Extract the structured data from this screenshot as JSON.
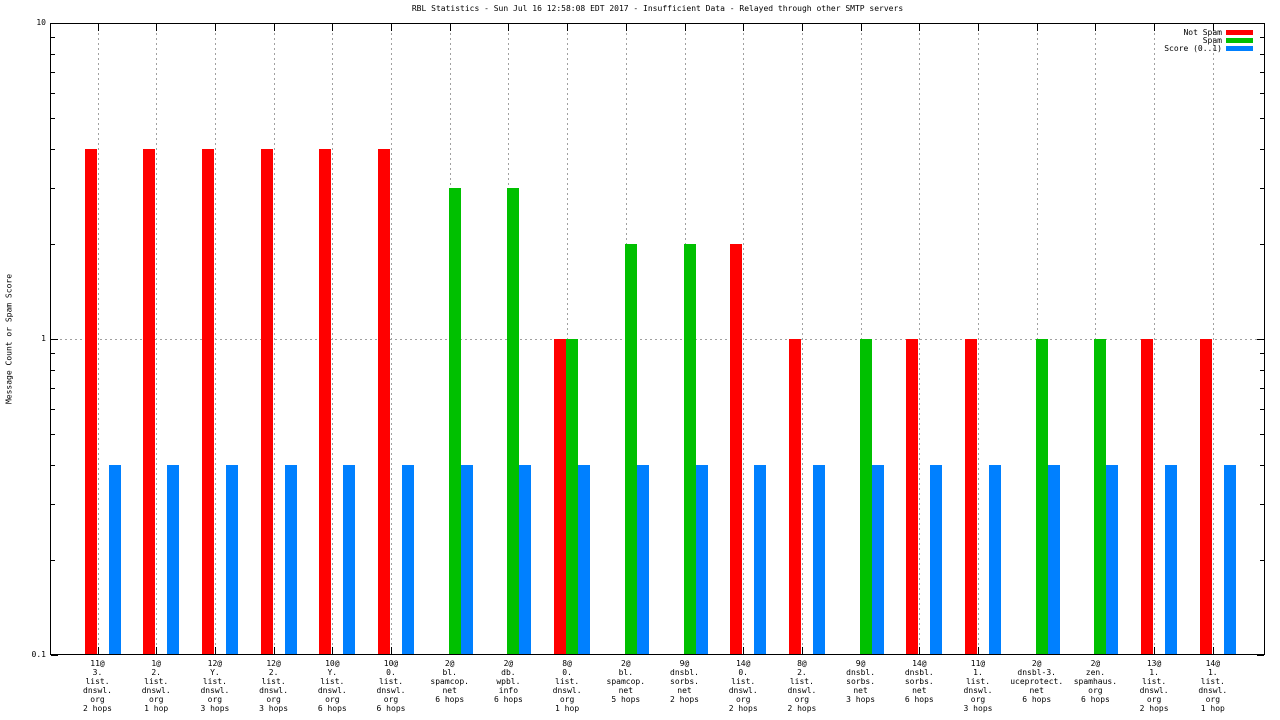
{
  "chart_data": {
    "type": "bar",
    "title": "RBL Statistics - Sun Jul 16 12:58:08 EDT 2017 - Insufficient Data - Relayed through other SMTP servers",
    "ylabel": "Message Count or Spam Score",
    "xlabel": "",
    "yscale": "log",
    "ylim": [
      0.1,
      10
    ],
    "grid": true,
    "legend_position": "top-right-inside",
    "yticks": [
      {
        "value": 10,
        "label": "10"
      },
      {
        "value": 1,
        "label": "1"
      },
      {
        "value": 0.1,
        "label": "0.1"
      }
    ],
    "categories": [
      [
        "11@",
        "3.",
        "list.",
        "dnswl.",
        "org",
        "2 hops"
      ],
      [
        "1@",
        "2.",
        "list.",
        "dnswl.",
        "org",
        "1 hop"
      ],
      [
        "12@",
        "Y.",
        "list.",
        "dnswl.",
        "org",
        "3 hops"
      ],
      [
        "12@",
        "2.",
        "list.",
        "dnswl.",
        "org",
        "3 hops"
      ],
      [
        "10@",
        "Y.",
        "list.",
        "dnswl.",
        "org",
        "6 hops"
      ],
      [
        "10@",
        "0.",
        "list.",
        "dnswl.",
        "org",
        "6 hops"
      ],
      [
        "2@",
        "bl.",
        "spamcop.",
        "net",
        "6 hops"
      ],
      [
        "2@",
        "db.",
        "wpbl.",
        "info",
        "6 hops"
      ],
      [
        "8@",
        "0.",
        "list.",
        "dnswl.",
        "org",
        "1 hop"
      ],
      [
        "2@",
        "bl.",
        "spamcop.",
        "net",
        "5 hops"
      ],
      [
        "9@",
        "dnsbl.",
        "sorbs.",
        "net",
        "2 hops"
      ],
      [
        "14@",
        "0.",
        "list.",
        "dnswl.",
        "org",
        "2 hops"
      ],
      [
        "8@",
        "2.",
        "list.",
        "dnswl.",
        "org",
        "2 hops"
      ],
      [
        "9@",
        "dnsbl.",
        "sorbs.",
        "net",
        "3 hops"
      ],
      [
        "14@",
        "dnsbl.",
        "sorbs.",
        "net",
        "6 hops"
      ],
      [
        "11@",
        "1.",
        "list.",
        "dnswl.",
        "org",
        "3 hops"
      ],
      [
        "2@",
        "dnsbl-3.",
        "uceprotect.",
        "net",
        "6 hops"
      ],
      [
        "2@",
        "zen.",
        "spamhaus.",
        "org",
        "6 hops"
      ],
      [
        "13@",
        "1.",
        "list.",
        "dnswl.",
        "org",
        "2 hops"
      ],
      [
        "14@",
        "1.",
        "list.",
        "dnswl.",
        "org",
        "1 hop"
      ]
    ],
    "series": [
      {
        "name": "Not Spam",
        "key": "not-spam",
        "color": "#ff0000",
        "values": [
          4,
          4,
          4,
          4,
          4,
          4,
          0,
          0,
          1,
          0,
          0,
          2,
          1,
          0,
          1,
          1,
          0,
          0,
          1,
          1
        ]
      },
      {
        "name": "Spam",
        "key": "spam",
        "color": "#00c000",
        "values": [
          0,
          0,
          0,
          0,
          0,
          0,
          3,
          3,
          1,
          2,
          2,
          0,
          0,
          1,
          0,
          0,
          1,
          1,
          0,
          0
        ]
      },
      {
        "name": "Score (0..1)",
        "key": "score",
        "color": "#0080ff",
        "values": [
          0.4,
          0.4,
          0.4,
          0.4,
          0.4,
          0.4,
          0.4,
          0.4,
          0.4,
          0.4,
          0.4,
          0.4,
          0.4,
          0.4,
          0.4,
          0.4,
          0.4,
          0.4,
          0.4,
          0.4
        ]
      }
    ]
  }
}
